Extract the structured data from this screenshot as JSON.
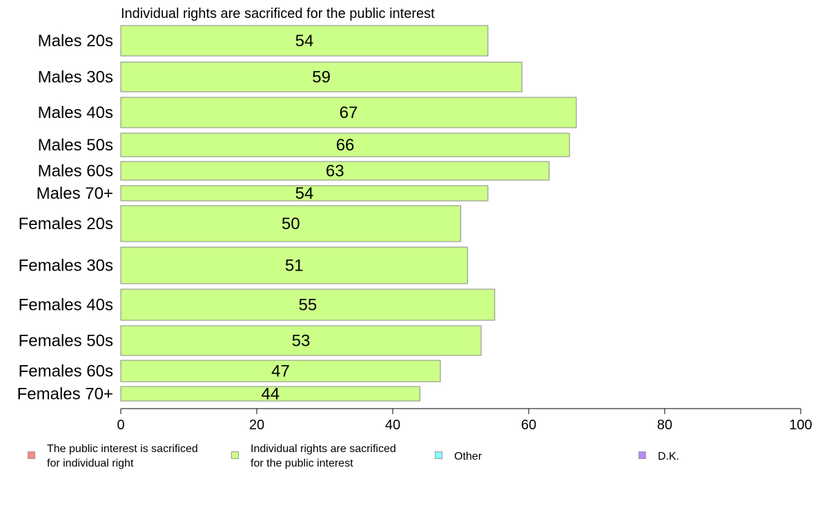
{
  "chart_data": {
    "type": "bar",
    "orientation": "horizontal",
    "title": "Individual rights are sacrificed for the public interest",
    "categories": [
      "Males 20s",
      "Males 30s",
      "Males 40s",
      "Males 50s",
      "Males 60s",
      "Males 70+",
      "Females 20s",
      "Females 30s",
      "Females 40s",
      "Females 50s",
      "Females 60s",
      "Females 70+"
    ],
    "values": [
      54,
      59,
      67,
      66,
      63,
      54,
      50,
      51,
      55,
      53,
      47,
      44
    ],
    "data_labels": [
      "54",
      "59",
      "67",
      "66",
      "63",
      "54",
      "50",
      "51",
      "55",
      "53",
      "47",
      "44"
    ],
    "xlim": [
      0,
      100
    ],
    "x_ticks": [
      "0",
      "20",
      "40",
      "60",
      "80",
      "100"
    ],
    "bar_color": "#ccff88",
    "grid": false,
    "legend_placement": "bottom",
    "legend": [
      {
        "label": "The public interest is sacrificed\nfor individual right",
        "color": "#ff8888"
      },
      {
        "label": "Individual rights are sacrificed\nfor the public interest",
        "color": "#ccff88"
      },
      {
        "label": "Other",
        "color": "#88ffff"
      },
      {
        "label": "D.K.",
        "color": "#bb88ff"
      }
    ]
  }
}
